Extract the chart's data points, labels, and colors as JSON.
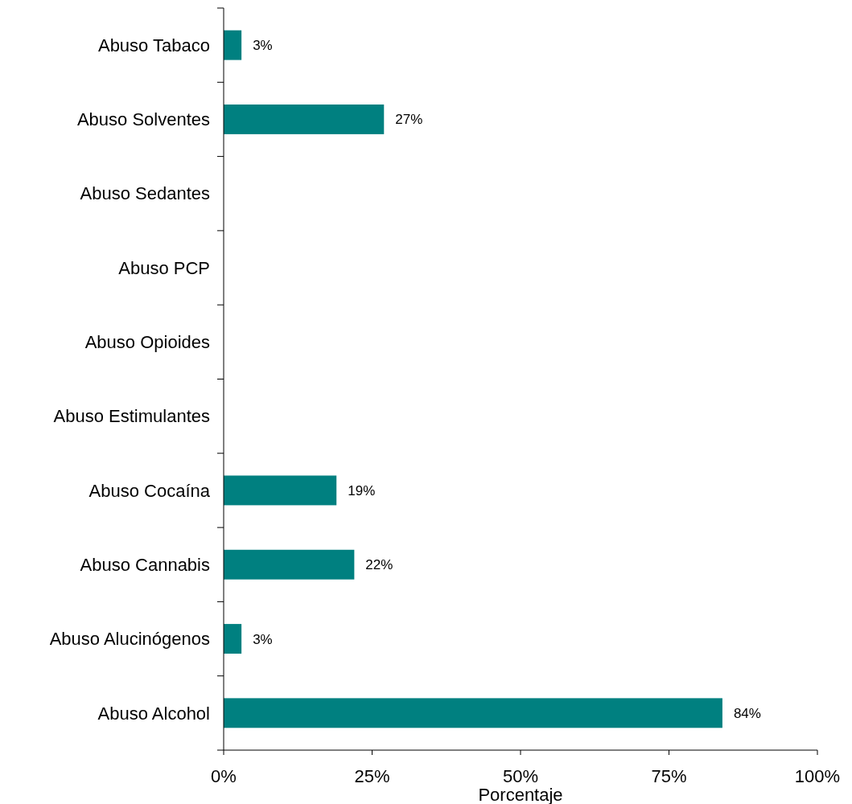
{
  "chart_data": {
    "type": "bar",
    "orientation": "horizontal",
    "xlabel": "Porcentaje",
    "categories": [
      "Abuso Tabaco",
      "Abuso Solventes",
      "Abuso Sedantes",
      "Abuso PCP",
      "Abuso Opioides",
      "Abuso Estimulantes",
      "Abuso Cocaína",
      "Abuso Cannabis",
      "Abuso Alucinógenos",
      "Abuso Alcohol"
    ],
    "values": [
      3,
      27,
      null,
      null,
      null,
      null,
      19,
      22,
      3,
      84
    ],
    "value_labels": [
      "3%",
      "27%",
      null,
      null,
      null,
      null,
      "19%",
      "22%",
      "3%",
      "84%"
    ],
    "color": "#008080",
    "xlim": [
      0,
      100
    ],
    "xticks": [
      {
        "value": 0,
        "label": "0%"
      },
      {
        "value": 25,
        "label": "25%"
      },
      {
        "value": 50,
        "label": "50%"
      },
      {
        "value": 75,
        "label": "75%"
      },
      {
        "value": 100,
        "label": "100%"
      }
    ]
  }
}
